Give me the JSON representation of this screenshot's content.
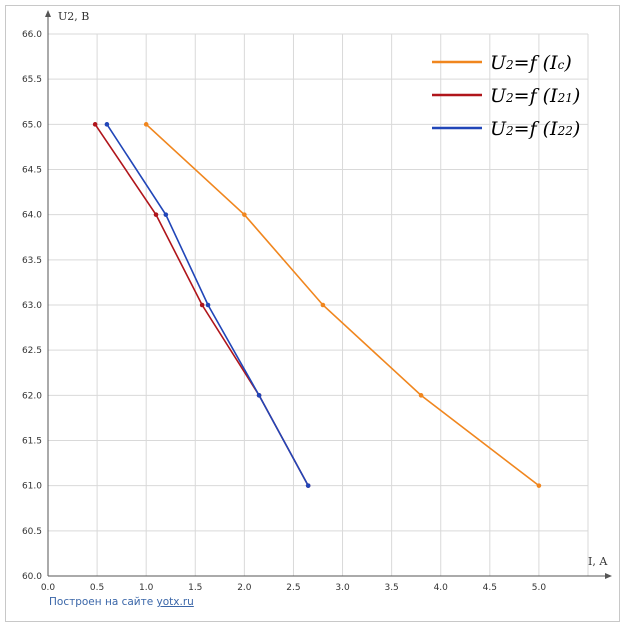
{
  "chart_data": {
    "type": "line",
    "xlabel": "I, A",
    "ylabel": "U2, B",
    "xlim": [
      0,
      5.5
    ],
    "ylim": [
      60,
      66
    ],
    "x_ticks": [
      "0.0",
      "0.5",
      "1.0",
      "1.5",
      "2.0",
      "2.5",
      "3.0",
      "3.5",
      "4.0",
      "4.5",
      "5.0"
    ],
    "y_ticks": [
      "60.0",
      "60.5",
      "61.0",
      "61.5",
      "62.0",
      "62.5",
      "63.0",
      "63.5",
      "64.0",
      "64.5",
      "65.0",
      "65.5",
      "66.0"
    ],
    "grid": true,
    "legend_position": "top-right",
    "series": [
      {
        "name_main": "U",
        "name_sub1": "2",
        "name_mid": "=f (I",
        "name_sub2": "c",
        "name_end": ")",
        "color": "#f0861e",
        "points": [
          [
            1.0,
            65.0
          ],
          [
            2.0,
            64.0
          ],
          [
            2.8,
            63.0
          ],
          [
            3.8,
            62.0
          ],
          [
            5.0,
            61.0
          ]
        ]
      },
      {
        "name_main": "U",
        "name_sub1": "2",
        "name_mid": "=f (I",
        "name_sub2": "21",
        "name_end": ")",
        "color": "#b0151b",
        "points": [
          [
            0.48,
            65.0
          ],
          [
            1.1,
            64.0
          ],
          [
            1.57,
            63.0
          ],
          [
            2.15,
            62.0
          ],
          [
            2.65,
            61.0
          ]
        ]
      },
      {
        "name_main": "U",
        "name_sub1": "2",
        "name_mid": "=f (I",
        "name_sub2": "22",
        "name_end": ")",
        "color": "#2146b8",
        "points": [
          [
            0.6,
            65.0
          ],
          [
            1.2,
            64.0
          ],
          [
            1.63,
            63.0
          ],
          [
            2.15,
            62.0
          ],
          [
            2.65,
            61.0
          ]
        ]
      }
    ]
  },
  "footer": {
    "prefix": "Построен на сайте ",
    "link": "yotx.ru"
  }
}
